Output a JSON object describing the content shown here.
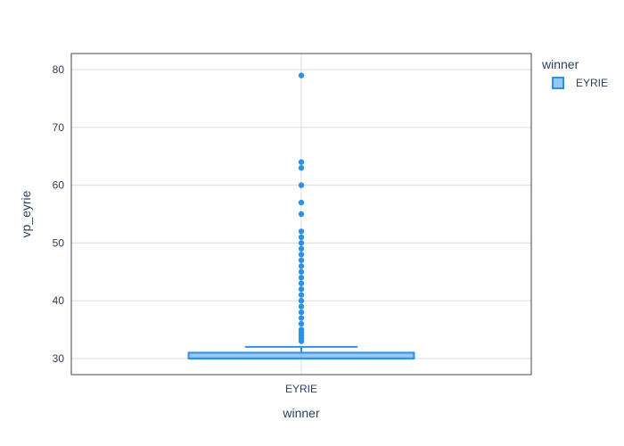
{
  "chart_data": {
    "type": "box",
    "xlabel": "winner",
    "ylabel": "vp_eyrie",
    "categories": [
      "EYRIE"
    ],
    "ylim": [
      27.2,
      82.8
    ],
    "yticks": [
      30,
      40,
      50,
      60,
      70,
      80
    ],
    "grid": true,
    "legend": {
      "title": "winner",
      "position": "top-right",
      "entries": [
        "EYRIE"
      ]
    },
    "series": [
      {
        "name": "EYRIE",
        "category": "EYRIE",
        "color": "#2e91e5",
        "min": 30,
        "q1": 30,
        "median": 30,
        "q3": 31,
        "upper_fence": 32,
        "outliers": [
          33,
          33.5,
          34,
          34.5,
          35,
          36,
          37,
          38,
          39,
          40,
          41,
          42,
          43,
          44,
          45,
          46,
          47,
          48,
          49,
          50,
          51,
          52,
          55,
          57,
          60,
          63,
          64,
          79
        ]
      }
    ]
  }
}
